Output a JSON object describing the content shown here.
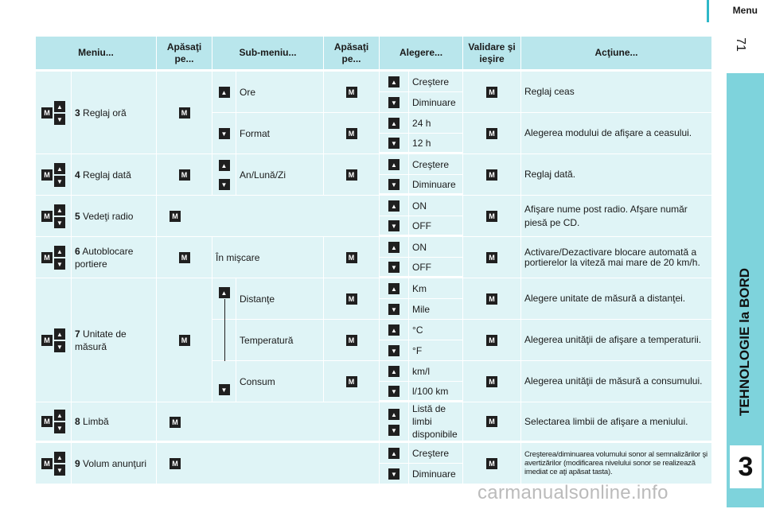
{
  "header": {
    "section": "Menu",
    "page_number": "71"
  },
  "sidebar": {
    "title": "TEHNOLOGIE la BORD",
    "chapter": "3"
  },
  "watermark": "carmanualsonline.info",
  "icons": {
    "m_key": "M",
    "up": "up-arrow-icon",
    "down": "down-arrow-icon"
  },
  "columns": [
    "Meniu...",
    "Apăsaţi pe...",
    "Sub-meniu...",
    "Apăsaţi pe...",
    "Alegere...",
    "Validare şi ieşire",
    "Acţiune..."
  ],
  "menus": [
    {
      "num": "3",
      "label": "Reglaj oră"
    },
    {
      "num": "4",
      "label": "Reglaj dată"
    },
    {
      "num": "5",
      "label": "Vedeţi radio"
    },
    {
      "num": "6",
      "label": "Autoblocare portiere"
    },
    {
      "num": "7",
      "label": "Unitate de măsură"
    },
    {
      "num": "8",
      "label": "Limbă"
    },
    {
      "num": "9",
      "label": "Volum anunţuri"
    }
  ],
  "submenus": {
    "ore": "Ore",
    "format": "Format",
    "date_format": "An/Lună/Zi",
    "in_motion": "În mişcare",
    "distance": "Distanţe",
    "temperature": "Temperatură",
    "consumption": "Consum"
  },
  "choices": {
    "increase": "Creştere",
    "decrease": "Diminuare",
    "h24": "24 h",
    "h12": "12 h",
    "on": "ON",
    "off": "OFF",
    "km": "Km",
    "mile": "Mile",
    "celsius": "°C",
    "fahrenheit": "°F",
    "kml": "km/l",
    "l100": "l/100 km",
    "languages": "Listă de limbi disponibile"
  },
  "actions": {
    "clock": "Reglaj ceas",
    "clock_mode": "Alegerea modului de afişare a ceasului.",
    "date": "Reglaj dată.",
    "radio": "Afişare nume post radio. Afşare număr piesă pe CD.",
    "autolock": "Activare/Dezactivare blocare automată a portierelor la viteză mai mare de 20 km/h.",
    "distance": "Alegere unitate de măsură a distanţei.",
    "temperature": "Alegerea unităţii de afişare a temperaturii.",
    "consumption": "Alegerea unităţii de măsură a consumului.",
    "language": "Selectarea limbii de afişare a meniului.",
    "volume": "Creşterea/diminuarea volumului sonor al semnalizărilor şi avertizărilor (modificarea nivelului sonor se realizează imediat ce aţi apăsat tasta)."
  }
}
